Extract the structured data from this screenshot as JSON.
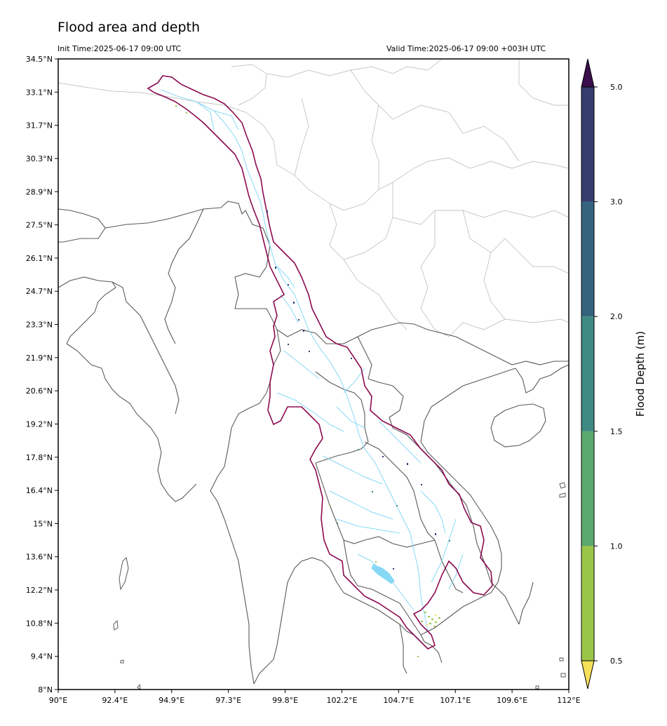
{
  "title": "Flood area and depth",
  "init_time": "Init Time:2025-06-17 09:00 UTC",
  "valid_time": "Valid Time:2025-06-17 09:00 +003H UTC",
  "map": {
    "lat_ticks": [
      "34.5°N",
      "33.1°N",
      "31.7°N",
      "30.3°N",
      "28.9°N",
      "27.5°N",
      "26.1°N",
      "24.7°N",
      "23.3°N",
      "21.9°N",
      "20.6°N",
      "19.2°N",
      "17.8°N",
      "16.4°N",
      "15°N",
      "13.6°N",
      "12.2°N",
      "10.8°N",
      "9.4°N",
      "8°N"
    ],
    "lon_ticks": [
      "90°E",
      "92.4°E",
      "94.9°E",
      "97.3°E",
      "99.8°E",
      "102.2°E",
      "104.7°E",
      "107.1°E",
      "109.6°E",
      "112°E"
    ],
    "basin_outline_color": "#8b0a50",
    "river_color": "#87d8f5",
    "border_color": "#555555",
    "province_color": "#b5b5b5",
    "lake_name_icon": "tonle-sap-lake"
  },
  "colorbar": {
    "label": "Flood Depth (m)",
    "ticks": [
      "0.5",
      "1.0",
      "1.5",
      "2.0",
      "3.0",
      "5.0"
    ],
    "bins": [
      {
        "from": 0.5,
        "to": 1.0,
        "color": "#9ac648"
      },
      {
        "from": 1.0,
        "to": 1.5,
        "color": "#5ba86d"
      },
      {
        "from": 1.5,
        "to": 2.0,
        "color": "#3e8a82"
      },
      {
        "from": 2.0,
        "to": 3.0,
        "color": "#35637e"
      },
      {
        "from": 3.0,
        "to": 5.0,
        "color": "#363c6d"
      }
    ],
    "under_color": "#f5e15a",
    "over_color": "#3a0f4c"
  }
}
